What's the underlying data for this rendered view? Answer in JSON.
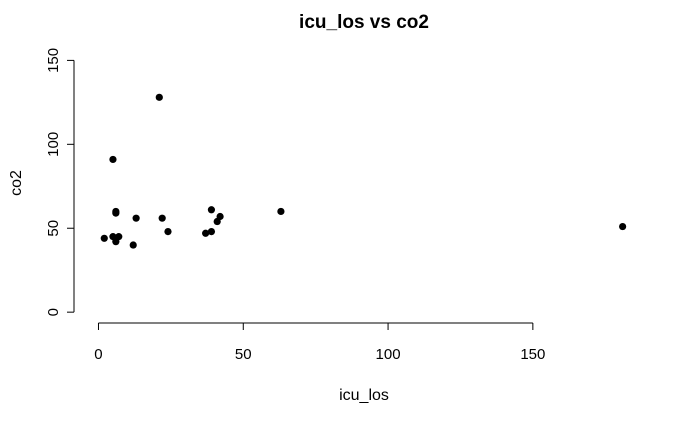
{
  "chart_data": {
    "type": "scatter",
    "title": "icu_los vs co2",
    "xlabel": "icu_los",
    "ylabel": "co2",
    "xlim": [
      -5,
      187
    ],
    "ylim": [
      -0.5,
      155
    ],
    "x_ticks": [
      0,
      50,
      100,
      150
    ],
    "y_ticks": [
      0,
      50,
      100,
      150
    ],
    "x_tick_labels": [
      "0",
      "50",
      "100",
      "150"
    ],
    "y_tick_labels": [
      "0",
      "50",
      "100",
      "150"
    ],
    "grid": false,
    "legend": "none",
    "point_color": "#000000",
    "points": [
      {
        "x": 2,
        "y": 44
      },
      {
        "x": 5,
        "y": 45
      },
      {
        "x": 5,
        "y": 91
      },
      {
        "x": 6,
        "y": 42
      },
      {
        "x": 6,
        "y": 59
      },
      {
        "x": 6,
        "y": 60
      },
      {
        "x": 7,
        "y": 45
      },
      {
        "x": 12,
        "y": 40
      },
      {
        "x": 13,
        "y": 56
      },
      {
        "x": 21,
        "y": 128
      },
      {
        "x": 22,
        "y": 56
      },
      {
        "x": 24,
        "y": 48
      },
      {
        "x": 37,
        "y": 47
      },
      {
        "x": 39,
        "y": 48
      },
      {
        "x": 39,
        "y": 61
      },
      {
        "x": 41,
        "y": 54
      },
      {
        "x": 42,
        "y": 57
      },
      {
        "x": 63,
        "y": 60
      },
      {
        "x": 181,
        "y": 51
      }
    ]
  }
}
